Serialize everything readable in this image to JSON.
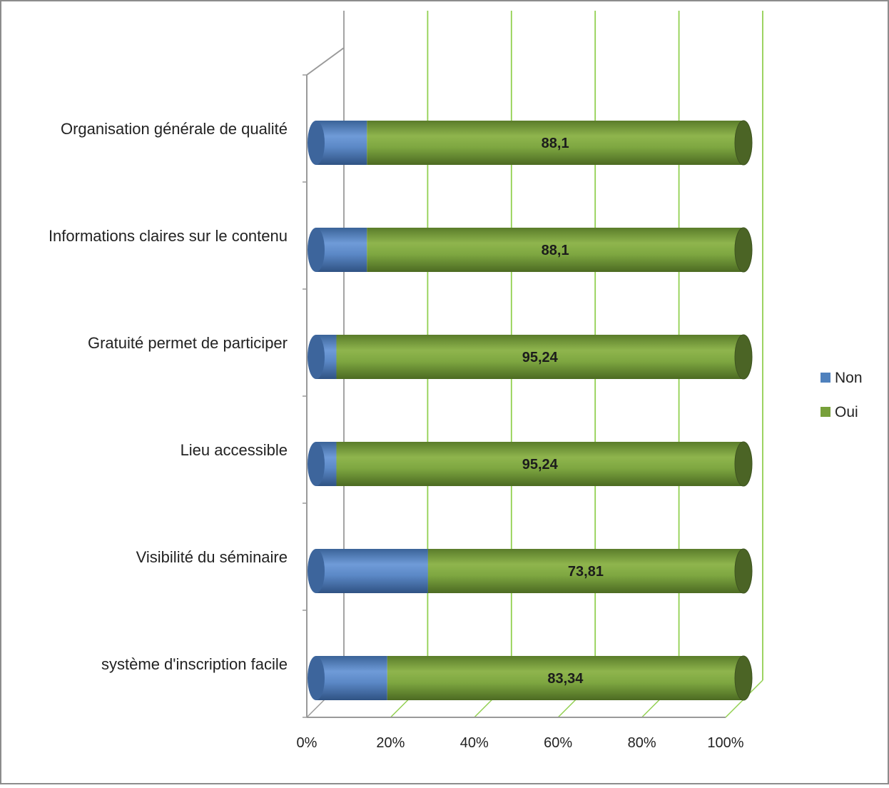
{
  "chart_data": {
    "type": "bar",
    "orientation": "horizontal",
    "stacked": "percent",
    "style": "3d-cylinder",
    "categories": [
      "Organisation générale de qualité",
      "Informations claires sur le contenu",
      "Gratuité permet de participer",
      "Lieu accessible",
      "Visibilité du séminaire",
      "système d'inscription facile"
    ],
    "series": [
      {
        "name": "Non",
        "values": [
          11.9,
          11.9,
          4.76,
          4.76,
          26.19,
          16.66
        ]
      },
      {
        "name": "Oui",
        "values": [
          88.1,
          88.1,
          95.24,
          95.24,
          73.81,
          83.34
        ]
      }
    ],
    "data_labels": [
      "88,1",
      "88,1",
      "95,24",
      "95,24",
      "73,81",
      "83,34"
    ],
    "x_ticks": [
      "0%",
      "20%",
      "40%",
      "60%",
      "80%",
      "100%"
    ],
    "xlim": [
      0,
      100
    ],
    "grid": true,
    "legend": "right",
    "colors": {
      "Non": "#4f81bd",
      "Oui": "#77a03a",
      "gridline": "#92d050",
      "axis": "#9a9a9a",
      "border": "#8c8c8c"
    }
  }
}
